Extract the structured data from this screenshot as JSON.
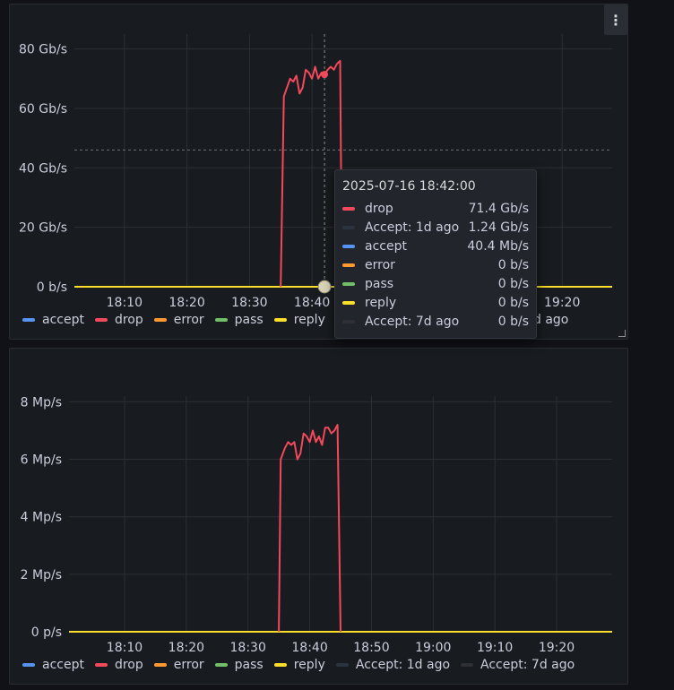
{
  "colors": {
    "accept": "#5794f2",
    "drop": "#f2495c",
    "error": "#ff9830",
    "pass": "#73bf69",
    "reply": "#fade2a",
    "accept_1d": "#2a3340",
    "accept_7d": "#2e3036"
  },
  "top_panel": {
    "menu_icon": "kebab-menu-icon",
    "legend": [
      {
        "key": "accept",
        "label": "accept"
      },
      {
        "key": "drop",
        "label": "drop"
      },
      {
        "key": "error",
        "label": "error"
      },
      {
        "key": "pass",
        "label": "pass"
      },
      {
        "key": "reply",
        "label": "reply"
      }
    ],
    "legend_tail": "d ago"
  },
  "tooltip": {
    "time": "2025-07-16 18:42:00",
    "rows": [
      {
        "key": "drop",
        "name": "drop",
        "value": "71.4 Gb/s"
      },
      {
        "key": "accept_1d",
        "name": "Accept: 1d ago",
        "value": "1.24 Gb/s"
      },
      {
        "key": "accept",
        "name": "accept",
        "value": "40.4 Mb/s"
      },
      {
        "key": "error",
        "name": "error",
        "value": "0 b/s"
      },
      {
        "key": "pass",
        "name": "pass",
        "value": "0 b/s"
      },
      {
        "key": "reply",
        "name": "reply",
        "value": "0 b/s"
      },
      {
        "key": "accept_7d",
        "name": "Accept: 7d ago",
        "value": "0 b/s"
      }
    ]
  },
  "bottom_panel": {
    "legend": [
      {
        "key": "accept",
        "label": "accept"
      },
      {
        "key": "drop",
        "label": "drop"
      },
      {
        "key": "error",
        "label": "error"
      },
      {
        "key": "pass",
        "label": "pass"
      },
      {
        "key": "reply",
        "label": "reply"
      },
      {
        "key": "accept_1d",
        "label": "Accept: 1d ago"
      },
      {
        "key": "accept_7d",
        "label": "Accept: 7d ago"
      }
    ]
  },
  "chart_data": [
    {
      "type": "line",
      "y_unit": "Gb/s",
      "ylim": [
        0,
        85
      ],
      "yticks": [
        0,
        20,
        40,
        60,
        80
      ],
      "ytick_labels": [
        "0 b/s",
        "20 Gb/s",
        "40 Gb/s",
        "60 Gb/s",
        "80 Gb/s"
      ],
      "xlim": [
        "18:02",
        "19:28"
      ],
      "xticks": [
        "18:10",
        "18:20",
        "18:30",
        "18:40",
        "19:20"
      ],
      "threshold_y": 46,
      "hover_x": "18:42",
      "grid": true,
      "legend_placement": "bottom",
      "series": [
        {
          "name": "drop",
          "key": "drop",
          "points": [
            [
              "18:35",
              0
            ],
            [
              "18:35.5",
              64
            ],
            [
              "18:36",
              67
            ],
            [
              "18:36.5",
              70
            ],
            [
              "18:37",
              69
            ],
            [
              "18:37.5",
              71
            ],
            [
              "18:38",
              65
            ],
            [
              "18:38.5",
              67
            ],
            [
              "18:39",
              73
            ],
            [
              "18:39.5",
              72
            ],
            [
              "18:40",
              70
            ],
            [
              "18:40.5",
              74
            ],
            [
              "18:41",
              70
            ],
            [
              "18:41.5",
              72
            ],
            [
              "18:42",
              71.4
            ],
            [
              "18:42.5",
              73
            ],
            [
              "18:43",
              74
            ],
            [
              "18:43.5",
              73
            ],
            [
              "18:44",
              75
            ],
            [
              "18:44.5",
              76
            ],
            [
              "18:44.8",
              0
            ]
          ]
        },
        {
          "name": "reply",
          "key": "reply",
          "points": [
            [
              "18:02",
              0
            ],
            [
              "19:28",
              0
            ]
          ]
        }
      ]
    },
    {
      "type": "line",
      "y_unit": "Mp/s",
      "ylim": [
        0,
        8.2
      ],
      "yticks": [
        0,
        2,
        4,
        6,
        8
      ],
      "ytick_labels": [
        "0 p/s",
        "2 Mp/s",
        "4 Mp/s",
        "6 Mp/s",
        "8 Mp/s"
      ],
      "xlim": [
        "18:01",
        "19:29"
      ],
      "xticks": [
        "18:10",
        "18:20",
        "18:30",
        "18:40",
        "18:50",
        "19:00",
        "19:10",
        "19:20"
      ],
      "grid": true,
      "legend_placement": "bottom",
      "series": [
        {
          "name": "drop",
          "key": "drop",
          "points": [
            [
              "18:35",
              0
            ],
            [
              "18:35.3",
              6.0
            ],
            [
              "18:36",
              6.4
            ],
            [
              "18:36.5",
              6.6
            ],
            [
              "18:37",
              6.5
            ],
            [
              "18:37.5",
              6.6
            ],
            [
              "18:38",
              6.0
            ],
            [
              "18:38.5",
              6.2
            ],
            [
              "18:39",
              6.9
            ],
            [
              "18:39.5",
              6.8
            ],
            [
              "18:40",
              6.6
            ],
            [
              "18:40.5",
              7.0
            ],
            [
              "18:41",
              6.6
            ],
            [
              "18:41.5",
              6.8
            ],
            [
              "18:42",
              6.5
            ],
            [
              "18:42.5",
              7.1
            ],
            [
              "18:43",
              7.1
            ],
            [
              "18:43.5",
              6.9
            ],
            [
              "18:44",
              7.0
            ],
            [
              "18:44.5",
              7.2
            ],
            [
              "18:45",
              0
            ]
          ]
        },
        {
          "name": "reply",
          "key": "reply",
          "points": [
            [
              "18:01",
              0
            ],
            [
              "19:29",
              0
            ]
          ]
        }
      ]
    }
  ]
}
